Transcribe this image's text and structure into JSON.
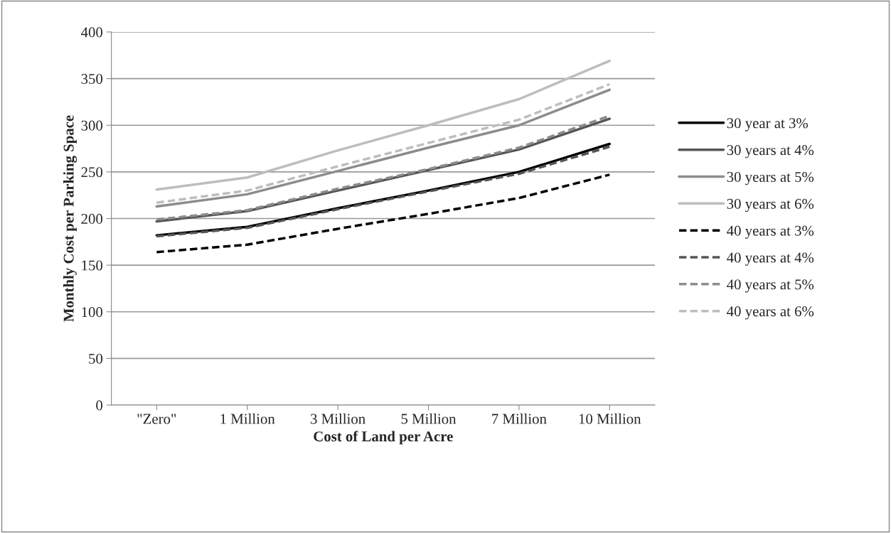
{
  "chart_data": {
    "type": "line",
    "xlabel": "Cost of Land per Acre",
    "ylabel": "Monthly Cost per Parking Space",
    "categories": [
      "\"Zero\"",
      "1 Million",
      "3 Million",
      "5 Million",
      "7 Million",
      "10 Million"
    ],
    "series": [
      {
        "name": "30 year at 3%",
        "color": "#000000",
        "line_style": "solid",
        "values": [
          182,
          191,
          211,
          230,
          250,
          280
        ]
      },
      {
        "name": "30 years at 4%",
        "color": "#555555",
        "line_style": "solid",
        "values": [
          197,
          208,
          230,
          252,
          274,
          307
        ]
      },
      {
        "name": "30 years at 5%",
        "color": "#8c8c8c",
        "line_style": "solid",
        "values": [
          213,
          226,
          251,
          276,
          300,
          338
        ]
      },
      {
        "name": "30 years at 6%",
        "color": "#bdbdbd",
        "line_style": "solid",
        "values": [
          231,
          244,
          273,
          300,
          328,
          369
        ]
      },
      {
        "name": "40 years at 3%",
        "color": "#000000",
        "line_style": "dashed",
        "values": [
          164,
          172,
          189,
          205,
          222,
          247
        ]
      },
      {
        "name": "40 years at 4%",
        "color": "#555555",
        "line_style": "dashed",
        "values": [
          181,
          190,
          210,
          229,
          248,
          277
        ]
      },
      {
        "name": "40 years at 5%",
        "color": "#8c8c8c",
        "line_style": "dashed",
        "values": [
          199,
          209,
          232,
          253,
          276,
          310
        ]
      },
      {
        "name": "40 years at 6%",
        "color": "#bdbdbd",
        "line_style": "dashed",
        "values": [
          217,
          230,
          256,
          281,
          306,
          344
        ]
      }
    ],
    "ylim": [
      0,
      400
    ],
    "yticks": [
      0,
      50,
      100,
      150,
      200,
      250,
      300,
      350,
      400
    ],
    "grid": "y",
    "legend": "right",
    "marker": "none"
  }
}
